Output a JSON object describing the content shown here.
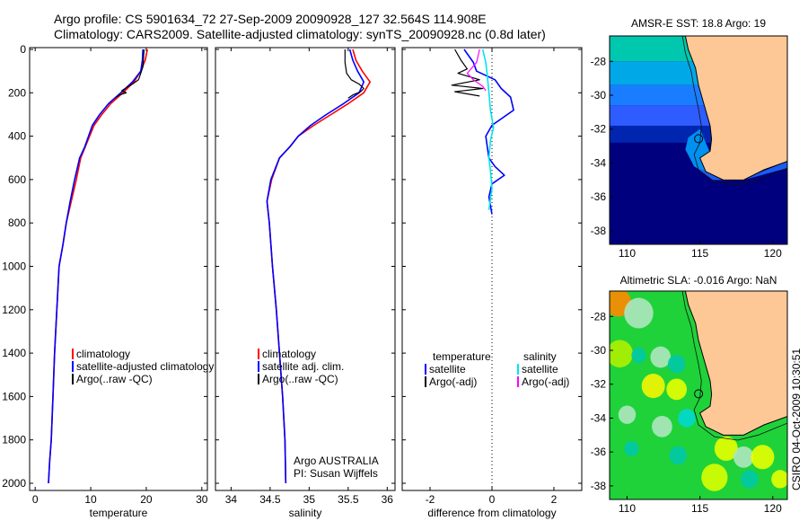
{
  "header": {
    "line1": "Argo profile: CS 5901634_72 27-Sep-2009 20090928_127 32.564S 114.908E",
    "line2": "Climatology: CARS2009. Satellite-adjusted climatology: synTS_20090928.nc (0.8d later)"
  },
  "stamp": "CSIRO 04-Oct-2009 10:30:51",
  "colors": {
    "climatology": "#ff0000",
    "satellite": "#0000ff",
    "argo": "#000000",
    "sal_satellite": "#00e5ee",
    "sal_argo": "#ff00ff",
    "land": "#fdc896",
    "coast": "#000000"
  },
  "chart_data": [
    {
      "id": "temperature",
      "type": "line",
      "xlabel": "temperature",
      "xlim": [
        -1,
        31
      ],
      "ylim": [
        2070,
        0
      ],
      "xticks": [
        0,
        10,
        20,
        30
      ],
      "yticks": [
        0,
        200,
        400,
        600,
        800,
        1000,
        1200,
        1400,
        1600,
        1800,
        2000
      ],
      "legend": {
        "placement": "lower-right",
        "labels": [
          "climatology",
          "satellite-adjusted climatology",
          "Argo(..raw -QC)"
        ]
      },
      "series": [
        {
          "name": "climatology",
          "color": "climatology",
          "width": 1.6,
          "x": [
            20.2,
            19.8,
            19.0,
            17.8,
            15.8,
            13.6,
            12.0,
            10.6,
            9.8,
            9.0,
            8.2,
            7.4,
            6.5,
            5.6,
            5.0,
            4.3,
            3.9,
            3.5,
            3.2,
            2.9,
            2.6,
            2.4
          ],
          "y": [
            0,
            50,
            100,
            150,
            200,
            250,
            300,
            350,
            400,
            450,
            500,
            600,
            700,
            800,
            900,
            1000,
            1200,
            1400,
            1600,
            1800,
            1900,
            2000
          ]
        },
        {
          "name": "satellite-adjusted climatology",
          "color": "satellite",
          "width": 1.6,
          "x": [
            19.4,
            19.3,
            19.0,
            17.5,
            15.4,
            13.2,
            11.6,
            10.3,
            9.6,
            8.9,
            8.0,
            7.1,
            6.3,
            5.6,
            5.0,
            4.3,
            3.9,
            3.5,
            3.2,
            2.9,
            2.6,
            2.4
          ],
          "y": [
            0,
            50,
            100,
            150,
            200,
            250,
            300,
            350,
            400,
            450,
            500,
            600,
            700,
            800,
            900,
            1000,
            1200,
            1400,
            1600,
            1800,
            1900,
            2000
          ]
        },
        {
          "name": "Argo(..raw -QC)",
          "color": "argo",
          "width": 1.2,
          "x": [
            19.6,
            19.5,
            19.4,
            19.0,
            18.6,
            17.5,
            16.8,
            15.6,
            16.4,
            15.2,
            14.6
          ],
          "y": [
            0,
            40,
            80,
            110,
            140,
            160,
            170,
            190,
            200,
            210,
            220
          ]
        }
      ]
    },
    {
      "id": "salinity",
      "type": "line",
      "xlabel": "salinity",
      "xlim": [
        33.8,
        36.1
      ],
      "ylim": [
        2070,
        0
      ],
      "xticks": [
        34,
        34.5,
        35,
        35.5,
        36
      ],
      "legend": {
        "placement": "lower-right",
        "labels": [
          "climatology",
          "satellite adj. clim.",
          "Argo(..raw -QC)"
        ]
      },
      "annotation": [
        "Argo AUSTRALIA",
        "PI: Susan Wijffels"
      ],
      "series": [
        {
          "name": "climatology",
          "color": "climatology",
          "width": 1.6,
          "x": [
            35.56,
            35.6,
            35.68,
            35.78,
            35.7,
            35.5,
            35.28,
            35.06,
            34.86,
            34.75,
            34.62,
            34.52,
            34.46,
            34.49,
            34.53,
            34.58,
            34.62,
            34.66,
            34.69,
            34.7
          ],
          "y": [
            0,
            50,
            100,
            150,
            200,
            250,
            300,
            350,
            400,
            450,
            500,
            600,
            700,
            800,
            1000,
            1200,
            1400,
            1600,
            1800,
            2000
          ]
        },
        {
          "name": "satellite adj. clim.",
          "color": "satellite",
          "width": 1.6,
          "x": [
            35.52,
            35.56,
            35.62,
            35.7,
            35.64,
            35.44,
            35.22,
            35.02,
            34.86,
            34.75,
            34.62,
            34.51,
            34.46,
            34.49,
            34.53,
            34.58,
            34.62,
            34.66,
            34.69,
            34.7
          ],
          "y": [
            0,
            50,
            100,
            150,
            200,
            250,
            300,
            350,
            400,
            450,
            500,
            600,
            700,
            800,
            1000,
            1200,
            1400,
            1600,
            1800,
            2000
          ]
        },
        {
          "name": "Argo(..raw -QC)",
          "color": "argo",
          "width": 1.2,
          "x": [
            35.46,
            35.46,
            35.48,
            35.54,
            35.64,
            35.7,
            35.66,
            35.56,
            35.5
          ],
          "y": [
            0,
            60,
            110,
            140,
            160,
            180,
            195,
            210,
            225
          ]
        }
      ]
    },
    {
      "id": "difference",
      "type": "line",
      "xlabel": "difference from climatology",
      "xlim": [
        -2.9,
        2.9
      ],
      "ylim": [
        2070,
        0
      ],
      "xticks": [
        -2,
        0,
        2
      ],
      "zero_line": "dotted",
      "legend": {
        "placement": "middle",
        "titles": [
          "temperature",
          "salinity"
        ],
        "labels": [
          "satellite",
          "Argo(-adj)",
          "satellite",
          "Argo(-adj)"
        ]
      },
      "series": [
        {
          "name": "satellite",
          "group": "temperature",
          "color": "satellite",
          "width": 1.6,
          "x": [
            -0.9,
            -0.6,
            -0.5,
            0.1,
            0.3,
            0.6,
            0.7,
            0.0,
            -0.2,
            -0.15,
            -0.1,
            0.1,
            0.4,
            0.0,
            -0.1,
            0.0
          ],
          "y": [
            0,
            60,
            100,
            140,
            180,
            220,
            280,
            350,
            400,
            450,
            500,
            540,
            580,
            620,
            680,
            760
          ]
        },
        {
          "name": "Argo(-adj)",
          "group": "temperature",
          "color": "argo",
          "width": 1.2,
          "x": [
            -1.2,
            -1.0,
            -0.8,
            -1.1,
            -0.4,
            -1.3,
            -0.3,
            -1.2,
            -0.4
          ],
          "y": [
            0,
            50,
            90,
            110,
            140,
            165,
            180,
            195,
            215
          ]
        },
        {
          "name": "satellite",
          "group": "salinity",
          "color": "sal_satellite",
          "width": 1.6,
          "x": [
            -0.3,
            -0.2,
            -0.15,
            -0.1,
            -0.05,
            0.05,
            -0.05,
            -0.1,
            -0.05,
            0.0,
            -0.1
          ],
          "y": [
            0,
            60,
            120,
            200,
            280,
            360,
            420,
            500,
            560,
            640,
            740
          ]
        },
        {
          "name": "Argo(-adj)",
          "group": "salinity",
          "color": "sal_argo",
          "width": 1.2,
          "x": [
            -0.4,
            -0.5,
            -0.8,
            -0.6,
            -0.3,
            -0.2
          ],
          "y": [
            0,
            60,
            110,
            140,
            170,
            190
          ]
        }
      ]
    }
  ],
  "maps": [
    {
      "id": "sst_map",
      "type": "heatmap",
      "title": "AMSR-E SST: 18.8 Argo: 19",
      "xticks": [
        110,
        115,
        120
      ],
      "yticks": [
        -28,
        -30,
        -32,
        -34,
        -36,
        -38
      ],
      "xlim": [
        108.8,
        121
      ],
      "ylim": [
        -38.8,
        -26.5
      ],
      "palette": "sst",
      "profile_point": [
        114.908,
        -32.564
      ]
    },
    {
      "id": "sla_map",
      "type": "heatmap",
      "title": "Altimetric SLA: -0.016 Argo: NaN",
      "xticks": [
        110,
        115,
        120
      ],
      "yticks": [
        -28,
        -30,
        -32,
        -34,
        -36,
        -38
      ],
      "xlim": [
        108.8,
        121
      ],
      "ylim": [
        -38.8,
        -26.5
      ],
      "palette": "sla",
      "profile_point": [
        114.908,
        -32.564
      ]
    }
  ]
}
